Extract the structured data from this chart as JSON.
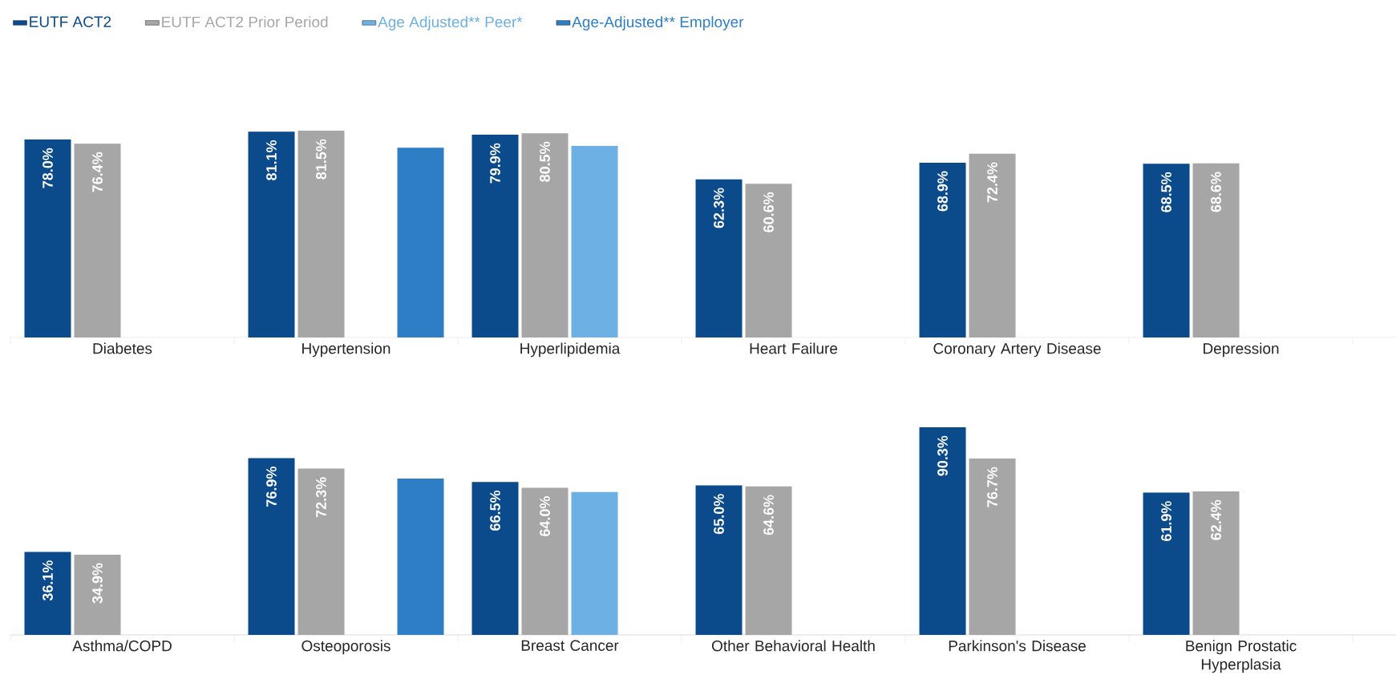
{
  "chart_data": [
    {
      "type": "bar",
      "legend": "top",
      "categories": [
        "Diabetes",
        "Hypertension",
        "Hyperlipidemia",
        "Heart Failure",
        "Coronary Artery Disease",
        "Depression"
      ],
      "series": [
        {
          "name": "EUTF ACT2",
          "color": "#0b4a8b",
          "values": [
            78.0,
            81.1,
            79.9,
            62.3,
            68.9,
            68.5
          ],
          "value_labels": [
            "78.0%",
            "81.1%",
            "79.9%",
            "62.3%",
            "68.9%",
            "68.5%"
          ]
        },
        {
          "name": "EUTF ACT2 Prior Period",
          "color": "#a6a6a6",
          "values": [
            76.4,
            81.5,
            80.5,
            60.6,
            72.4,
            68.6
          ],
          "value_labels": [
            "76.4%",
            "81.5%",
            "80.5%",
            "60.6%",
            "72.4%",
            "68.6%"
          ]
        },
        {
          "name": "Age Adjusted** Peer*",
          "color": "#6cb0e4",
          "values": [
            null,
            null,
            75.5,
            null,
            null,
            null
          ],
          "value_labels": [
            null,
            null,
            null,
            null,
            null,
            null
          ]
        },
        {
          "name": "Age-Adjusted** Employer",
          "color": "#2e7ec6",
          "values": [
            null,
            74.8,
            null,
            null,
            null,
            null
          ],
          "value_labels": [
            null,
            null,
            null,
            null,
            null,
            null
          ]
        }
      ]
    },
    {
      "type": "bar",
      "categories": [
        "Asthma/COPD",
        "Osteoporosis",
        "Breast Cancer",
        "Other Behavioral Health",
        "Parkinson's Disease",
        "Benign Prostatic Hyperplasia"
      ],
      "series": [
        {
          "color": "#0b4a8b",
          "values": [
            36.1,
            76.9,
            66.5,
            65.0,
            90.3,
            61.9
          ],
          "value_labels": [
            "36.1%",
            "76.9%",
            "66.5%",
            "65.0%",
            "90.3%",
            "61.9%"
          ]
        },
        {
          "color": "#a6a6a6",
          "values": [
            34.9,
            72.3,
            64.0,
            64.6,
            76.7,
            62.4
          ],
          "value_labels": [
            "34.9%",
            "72.3%",
            "64.0%",
            "64.6%",
            "76.7%",
            "62.4%"
          ]
        },
        {
          "color": "#6cb0e4",
          "values": [
            null,
            null,
            62.1,
            null,
            null,
            null
          ],
          "value_labels": [
            null,
            null,
            null,
            null,
            null,
            null
          ]
        },
        {
          "color": "#2e7ec6",
          "values": [
            null,
            68.0,
            null,
            null,
            null,
            null
          ],
          "value_labels": [
            null,
            null,
            null,
            null,
            null,
            null
          ]
        }
      ]
    }
  ]
}
